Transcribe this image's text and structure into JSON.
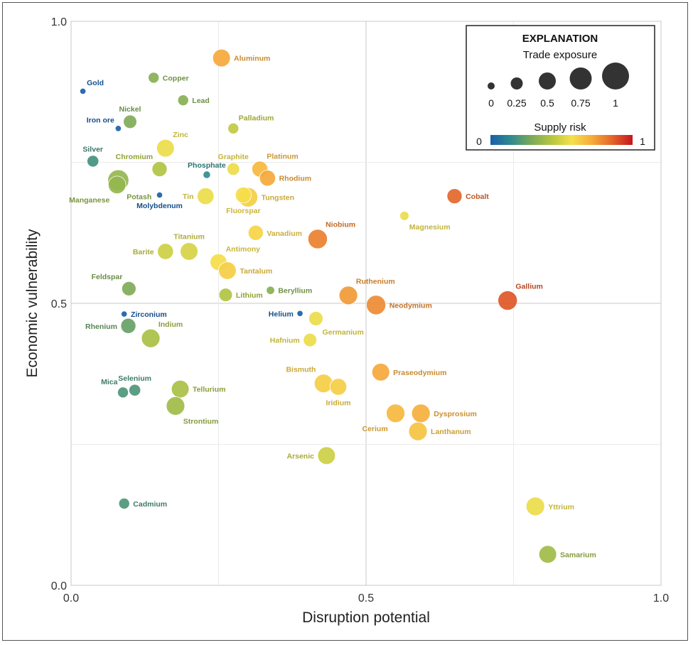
{
  "chart_data": {
    "type": "scatter",
    "xlabel": "Disruption potential",
    "ylabel": "Economic vulnerability",
    "xlim": [
      0,
      1
    ],
    "ylim": [
      0,
      1
    ],
    "x_ticks": [
      "0.0",
      "0.5",
      "1.0"
    ],
    "y_ticks": [
      "0.0",
      "0.5",
      "1.0"
    ],
    "grid": true,
    "legend": {
      "title": "EXPLANATION",
      "size_title": "Trade exposure",
      "size_values": [
        0,
        0.25,
        0.5,
        0.75,
        1
      ],
      "size_labels": [
        "0",
        "0.25",
        "0.5",
        "0.75",
        "1"
      ],
      "color_title": "Supply risk",
      "color_min_label": "0",
      "color_max_label": "1",
      "colorscale": [
        "#1a5fa8",
        "#2f8a8f",
        "#7aa85a",
        "#b5c640",
        "#f5e04a",
        "#f6ab3a",
        "#e2652a",
        "#c8141e"
      ],
      "placement": "top-right"
    },
    "points": [
      {
        "name": "Gold",
        "x": 0.02,
        "y": 0.876,
        "size": 0.02,
        "risk": 0.0,
        "label_pos": "ne"
      },
      {
        "name": "Copper",
        "x": 0.14,
        "y": 0.9,
        "size": 0.3,
        "risk": 0.32,
        "label_pos": "e"
      },
      {
        "name": "Aluminum",
        "x": 0.255,
        "y": 0.935,
        "size": 0.7,
        "risk": 0.72,
        "label_pos": "e"
      },
      {
        "name": "Lead",
        "x": 0.19,
        "y": 0.86,
        "size": 0.3,
        "risk": 0.32,
        "label_pos": "e"
      },
      {
        "name": "Iron ore",
        "x": 0.08,
        "y": 0.81,
        "size": 0.02,
        "risk": 0.0,
        "label_pos": "nw"
      },
      {
        "name": "Nickel",
        "x": 0.1,
        "y": 0.822,
        "size": 0.45,
        "risk": 0.3,
        "label_pos": "n"
      },
      {
        "name": "Palladium",
        "x": 0.275,
        "y": 0.81,
        "size": 0.3,
        "risk": 0.45,
        "label_pos": "ne"
      },
      {
        "name": "Zinc",
        "x": 0.16,
        "y": 0.775,
        "size": 0.7,
        "risk": 0.55,
        "label_pos": "ne"
      },
      {
        "name": "Silver",
        "x": 0.037,
        "y": 0.752,
        "size": 0.35,
        "risk": 0.18,
        "label_pos": "n"
      },
      {
        "name": "Chromium",
        "x": 0.15,
        "y": 0.738,
        "size": 0.55,
        "risk": 0.42,
        "label_pos": "nw"
      },
      {
        "name": "Graphite",
        "x": 0.275,
        "y": 0.738,
        "size": 0.4,
        "risk": 0.55,
        "label_pos": "n"
      },
      {
        "name": "Phosphate",
        "x": 0.23,
        "y": 0.728,
        "size": 0.1,
        "risk": 0.15,
        "label_pos": "n"
      },
      {
        "name": "Platinum",
        "x": 0.32,
        "y": 0.738,
        "size": 0.6,
        "risk": 0.68,
        "label_pos": "ne"
      },
      {
        "name": "Rhodium",
        "x": 0.333,
        "y": 0.722,
        "size": 0.6,
        "risk": 0.72,
        "label_pos": "e"
      },
      {
        "name": "Potash",
        "x": 0.08,
        "y": 0.718,
        "size": 0.9,
        "risk": 0.35,
        "label_pos": "se"
      },
      {
        "name": "Manganese",
        "x": 0.078,
        "y": 0.71,
        "size": 0.7,
        "risk": 0.35,
        "label_pos": "sw"
      },
      {
        "name": "Molybdenum",
        "x": 0.15,
        "y": 0.692,
        "size": 0.02,
        "risk": 0.0,
        "label_pos": "s"
      },
      {
        "name": "Tin",
        "x": 0.228,
        "y": 0.69,
        "size": 0.65,
        "risk": 0.55,
        "label_pos": "w"
      },
      {
        "name": "Tungsten",
        "x": 0.3,
        "y": 0.688,
        "size": 0.8,
        "risk": 0.62,
        "label_pos": "e"
      },
      {
        "name": "Fluorspar",
        "x": 0.292,
        "y": 0.692,
        "size": 0.6,
        "risk": 0.58,
        "label_pos": "s"
      },
      {
        "name": "Cobalt",
        "x": 0.65,
        "y": 0.69,
        "size": 0.55,
        "risk": 0.85,
        "label_pos": "e"
      },
      {
        "name": "Magnesium",
        "x": 0.565,
        "y": 0.655,
        "size": 0.2,
        "risk": 0.55,
        "label_pos": "se"
      },
      {
        "name": "Vanadium",
        "x": 0.313,
        "y": 0.625,
        "size": 0.55,
        "risk": 0.6,
        "label_pos": "e"
      },
      {
        "name": "Niobium",
        "x": 0.418,
        "y": 0.614,
        "size": 0.8,
        "risk": 0.8,
        "label_pos": "ne"
      },
      {
        "name": "Titanium",
        "x": 0.2,
        "y": 0.592,
        "size": 0.7,
        "risk": 0.5,
        "label_pos": "n"
      },
      {
        "name": "Barite",
        "x": 0.16,
        "y": 0.592,
        "size": 0.6,
        "risk": 0.48,
        "label_pos": "w"
      },
      {
        "name": "Antimony",
        "x": 0.25,
        "y": 0.573,
        "size": 0.65,
        "risk": 0.58,
        "label_pos": "ne"
      },
      {
        "name": "Tantalum",
        "x": 0.265,
        "y": 0.558,
        "size": 0.7,
        "risk": 0.62,
        "label_pos": "e"
      },
      {
        "name": "Feldspar",
        "x": 0.098,
        "y": 0.526,
        "size": 0.5,
        "risk": 0.3,
        "label_pos": "nw"
      },
      {
        "name": "Lithium",
        "x": 0.262,
        "y": 0.515,
        "size": 0.45,
        "risk": 0.42,
        "label_pos": "e"
      },
      {
        "name": "Beryllium",
        "x": 0.338,
        "y": 0.523,
        "size": 0.15,
        "risk": 0.32,
        "label_pos": "e"
      },
      {
        "name": "Ruthenium",
        "x": 0.47,
        "y": 0.514,
        "size": 0.75,
        "risk": 0.75,
        "label_pos": "ne"
      },
      {
        "name": "Neodymium",
        "x": 0.517,
        "y": 0.497,
        "size": 0.8,
        "risk": 0.78,
        "label_pos": "e"
      },
      {
        "name": "Gallium",
        "x": 0.74,
        "y": 0.505,
        "size": 0.8,
        "risk": 0.88,
        "label_pos": "ne"
      },
      {
        "name": "Zirconium",
        "x": 0.09,
        "y": 0.481,
        "size": 0.02,
        "risk": 0.0,
        "label_pos": "e"
      },
      {
        "name": "Helium",
        "x": 0.388,
        "y": 0.482,
        "size": 0.02,
        "risk": 0.0,
        "label_pos": "w"
      },
      {
        "name": "Germanium",
        "x": 0.415,
        "y": 0.473,
        "size": 0.5,
        "risk": 0.55,
        "label_pos": "se"
      },
      {
        "name": "Rhenium",
        "x": 0.097,
        "y": 0.46,
        "size": 0.55,
        "risk": 0.25,
        "label_pos": "w"
      },
      {
        "name": "Indium",
        "x": 0.135,
        "y": 0.438,
        "size": 0.75,
        "risk": 0.4,
        "label_pos": "ne"
      },
      {
        "name": "Hafnium",
        "x": 0.405,
        "y": 0.435,
        "size": 0.45,
        "risk": 0.55,
        "label_pos": "w"
      },
      {
        "name": "Praseodymium",
        "x": 0.525,
        "y": 0.378,
        "size": 0.7,
        "risk": 0.72,
        "label_pos": "e"
      },
      {
        "name": "Bismuth",
        "x": 0.428,
        "y": 0.358,
        "size": 0.75,
        "risk": 0.62,
        "label_pos": "nw"
      },
      {
        "name": "Iridium",
        "x": 0.453,
        "y": 0.352,
        "size": 0.65,
        "risk": 0.62,
        "label_pos": "s"
      },
      {
        "name": "Selenium",
        "x": 0.108,
        "y": 0.346,
        "size": 0.35,
        "risk": 0.2,
        "label_pos": "n"
      },
      {
        "name": "Mica",
        "x": 0.088,
        "y": 0.342,
        "size": 0.3,
        "risk": 0.2,
        "label_pos": "nw"
      },
      {
        "name": "Tellurium",
        "x": 0.185,
        "y": 0.348,
        "size": 0.7,
        "risk": 0.4,
        "label_pos": "e"
      },
      {
        "name": "Strontium",
        "x": 0.177,
        "y": 0.318,
        "size": 0.75,
        "risk": 0.38,
        "label_pos": "se"
      },
      {
        "name": "Cerium",
        "x": 0.55,
        "y": 0.305,
        "size": 0.75,
        "risk": 0.68,
        "label_pos": "sw"
      },
      {
        "name": "Dysprosium",
        "x": 0.593,
        "y": 0.305,
        "size": 0.75,
        "risk": 0.7,
        "label_pos": "e"
      },
      {
        "name": "Lanthanum",
        "x": 0.588,
        "y": 0.273,
        "size": 0.75,
        "risk": 0.65,
        "label_pos": "e"
      },
      {
        "name": "Arsenic",
        "x": 0.433,
        "y": 0.23,
        "size": 0.7,
        "risk": 0.48,
        "label_pos": "w"
      },
      {
        "name": "Cadmium",
        "x": 0.09,
        "y": 0.145,
        "size": 0.3,
        "risk": 0.2,
        "label_pos": "e"
      },
      {
        "name": "Yttrium",
        "x": 0.787,
        "y": 0.14,
        "size": 0.75,
        "risk": 0.55,
        "label_pos": "e"
      },
      {
        "name": "Samarium",
        "x": 0.808,
        "y": 0.055,
        "size": 0.7,
        "risk": 0.38,
        "label_pos": "e"
      }
    ]
  }
}
